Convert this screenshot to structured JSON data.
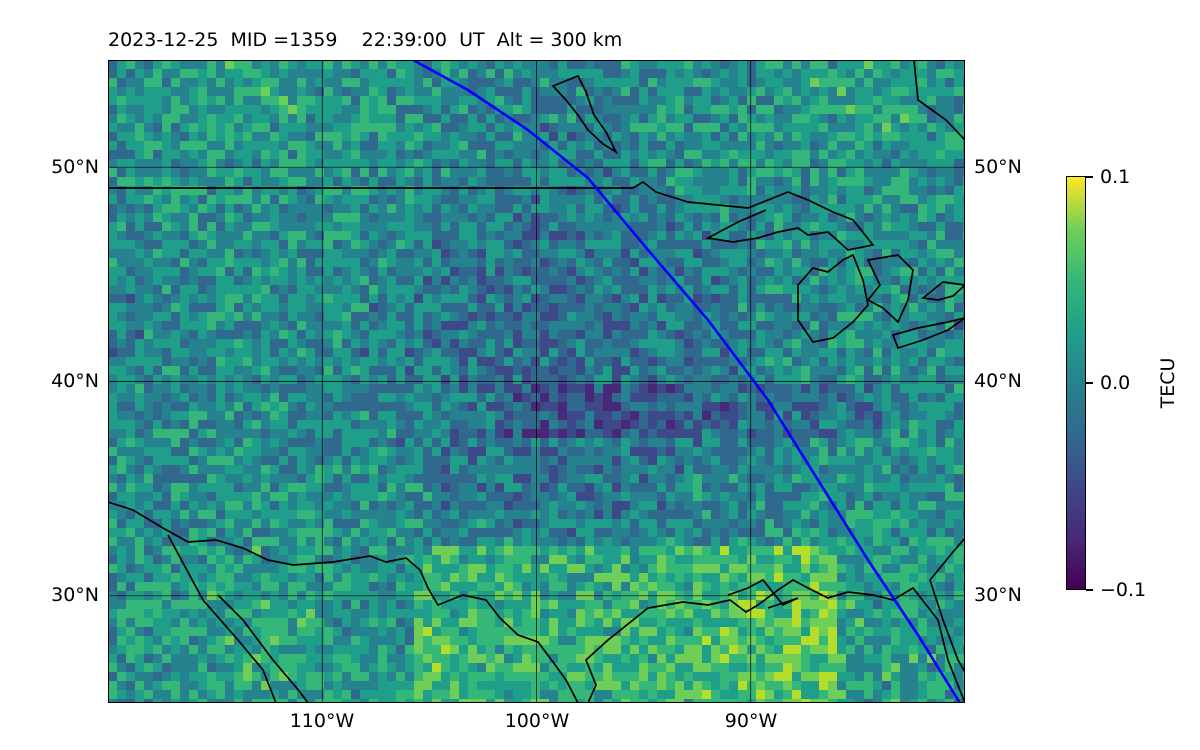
{
  "header": {
    "date": "2023-12-25",
    "mid": "MID =1359",
    "time": "22:39:00",
    "ut": "UT",
    "alt": "Alt = 300 km"
  },
  "map": {
    "extent_lon": [
      -120,
      -80
    ],
    "extent_lat": [
      25,
      55
    ],
    "lat_ticks": [
      {
        "value": 50,
        "label": "50°N"
      },
      {
        "value": 40,
        "label": "40°N"
      },
      {
        "value": 30,
        "label": "30°N"
      }
    ],
    "lon_ticks": [
      {
        "value": -110,
        "label": "110°W"
      },
      {
        "value": -100,
        "label": "100°W"
      },
      {
        "value": -90,
        "label": "90°W"
      }
    ],
    "gridlines": true,
    "satellite_track_color": "#0000ff",
    "coastline_color": "#000000",
    "features": [
      "coastlines",
      "great-lakes",
      "us-canada-border",
      "satellite-track"
    ],
    "field": "TEC perturbation (speckled, viridis)"
  },
  "colorbar": {
    "min_label": "−0.1",
    "mid_label": "0.0",
    "max_label": "0.1",
    "title": "TECU",
    "colormap": "viridis",
    "range": [
      -0.1,
      0.1
    ]
  }
}
